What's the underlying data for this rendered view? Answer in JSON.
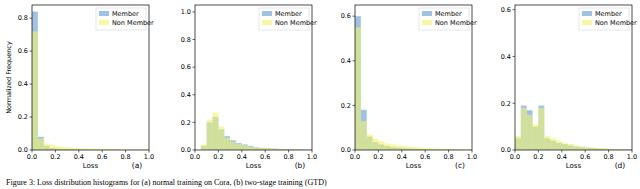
{
  "chart_data": [
    {
      "type": "histogram",
      "title": "(a)",
      "x_label": "Loss",
      "y_label": "Normalized Frequency",
      "bins": [
        0,
        0.05,
        0.1,
        0.15,
        0.2,
        0.25,
        0.3,
        0.35,
        0.4,
        0.45,
        0.5,
        0.55,
        0.6,
        0.65,
        0.7,
        0.75,
        0.8,
        0.85,
        0.9,
        0.95,
        1
      ],
      "series": [
        {
          "name": "Member",
          "color": "#8fb8e0",
          "values": [
            0.84,
            0.08,
            0.025,
            0.012,
            0.008,
            0.006,
            0.005,
            0.004,
            0.003,
            0.003,
            0.002,
            0.002,
            0.002,
            0.001,
            0.001,
            0.001,
            0.001,
            0.001,
            0.001,
            0.001
          ]
        },
        {
          "name": "Non Member",
          "color": "#f2f26a",
          "values": [
            0.72,
            0.07,
            0.04,
            0.03,
            0.022,
            0.018,
            0.015,
            0.012,
            0.01,
            0.009,
            0.008,
            0.007,
            0.006,
            0.005,
            0.005,
            0.004,
            0.004,
            0.003,
            0.003,
            0.003
          ]
        }
      ],
      "xlim": [
        0,
        1
      ],
      "xticks": [
        {
          "value": 0,
          "label": "0.0"
        },
        0.2,
        0.4,
        0.6,
        0.8,
        {
          "value": 1,
          "label": "1.0"
        }
      ],
      "ylim": [
        0,
        0.88
      ],
      "yticks": [
        {
          "value": 0,
          "label": "0.0"
        },
        0.2,
        0.4,
        0.6,
        0.8
      ],
      "legend": "upper right",
      "grid": false
    },
    {
      "type": "histogram",
      "title": "(b)",
      "x_label": "Loss",
      "bins": [
        0,
        0.05,
        0.1,
        0.15,
        0.2,
        0.25,
        0.3,
        0.35,
        0.4,
        0.45,
        0.5,
        0.55,
        0.6,
        0.65,
        0.7,
        0.75,
        0.8,
        0.85,
        0.9,
        0.95,
        1
      ],
      "series": [
        {
          "name": "Member",
          "color": "#8fb8e0",
          "values": [
            0,
            0.03,
            0.2,
            0.24,
            0.15,
            0.1,
            0.07,
            0.05,
            0.04,
            0.03,
            0.02,
            0.015,
            0.012,
            0.01,
            0.008,
            0.006,
            0.005,
            0.004,
            0.003,
            0.002
          ]
        },
        {
          "name": "Non Member",
          "color": "#f2f26a",
          "values": [
            0,
            0.04,
            0.22,
            0.27,
            0.17,
            0.09,
            0.06,
            0.045,
            0.035,
            0.025,
            0.02,
            0.015,
            0.012,
            0.01,
            0.008,
            0.006,
            0.005,
            0.004,
            0.003,
            0.002
          ]
        }
      ],
      "xlim": [
        0,
        1
      ],
      "xticks": [
        {
          "value": 0,
          "label": "0.0"
        },
        0.2,
        0.4,
        0.6,
        0.8,
        {
          "value": 1,
          "label": "1.0"
        }
      ],
      "ylim": [
        0,
        1.05
      ],
      "yticks": [
        {
          "value": 0,
          "label": "0.0"
        },
        0.2,
        0.4,
        0.6,
        0.8,
        {
          "value": 1,
          "label": "1.0"
        }
      ],
      "legend": "upper right",
      "grid": false
    },
    {
      "type": "histogram",
      "title": "(c)",
      "x_label": "Loss",
      "bins": [
        0,
        0.05,
        0.1,
        0.15,
        0.2,
        0.25,
        0.3,
        0.35,
        0.4,
        0.45,
        0.5,
        0.55,
        0.6,
        0.65,
        0.7,
        0.75,
        0.8,
        0.85,
        0.9,
        0.95,
        1
      ],
      "series": [
        {
          "name": "Member",
          "color": "#8fb8e0",
          "values": [
            0.6,
            0.18,
            0.06,
            0.035,
            0.025,
            0.018,
            0.013,
            0.01,
            0.008,
            0.006,
            0.005,
            0.004,
            0.003,
            0.003,
            0.002,
            0.002,
            0.002,
            0.001,
            0.001,
            0.001
          ]
        },
        {
          "name": "Non Member",
          "color": "#f2f26a",
          "values": [
            0.55,
            0.13,
            0.07,
            0.05,
            0.04,
            0.03,
            0.025,
            0.02,
            0.018,
            0.015,
            0.012,
            0.01,
            0.008,
            0.007,
            0.006,
            0.005,
            0.004,
            0.003,
            0.003,
            0.002
          ]
        }
      ],
      "xlim": [
        0,
        1
      ],
      "xticks": [
        {
          "value": 0,
          "label": "0.0"
        },
        0.2,
        0.4,
        0.6,
        0.8,
        {
          "value": 1,
          "label": "1.0"
        }
      ],
      "ylim": [
        0,
        0.65
      ],
      "yticks": [
        {
          "value": 0,
          "label": "0.0"
        },
        0.2,
        0.4,
        0.6
      ],
      "legend": "upper right",
      "grid": false
    },
    {
      "type": "histogram",
      "title": "(d)",
      "x_label": "Loss",
      "bins": [
        0,
        0.05,
        0.1,
        0.15,
        0.2,
        0.25,
        0.3,
        0.35,
        0.4,
        0.45,
        0.5,
        0.55,
        0.6,
        0.65,
        0.7,
        0.75,
        0.8,
        0.85,
        0.9,
        0.95,
        1
      ],
      "series": [
        {
          "name": "Member",
          "color": "#8fb8e0",
          "values": [
            0.05,
            0.19,
            0.17,
            0.1,
            0.19,
            0.05,
            0.04,
            0.03,
            0.025,
            0.02,
            0.015,
            0.012,
            0.01,
            0.008,
            0.006,
            0.005,
            0.004,
            0.003,
            0.002,
            0.002
          ]
        },
        {
          "name": "Non Member",
          "color": "#f2f26a",
          "values": [
            0.06,
            0.18,
            0.15,
            0.11,
            0.18,
            0.06,
            0.05,
            0.04,
            0.03,
            0.025,
            0.02,
            0.015,
            0.012,
            0.01,
            0.008,
            0.006,
            0.005,
            0.004,
            0.003,
            0.002
          ]
        }
      ],
      "xlim": [
        0,
        1
      ],
      "xticks": [
        {
          "value": 0,
          "label": "0.0"
        },
        0.2,
        0.4,
        0.6,
        0.8,
        {
          "value": 1,
          "label": "1.0"
        }
      ],
      "ylim": [
        0,
        0.62
      ],
      "yticks": [
        {
          "value": 0,
          "label": "0.0"
        },
        0.2,
        0.4,
        0.6
      ],
      "legend": "upper right",
      "grid": false
    }
  ],
  "caption": "Figure 3: Loss distribution histograms for (a) normal training on Cora, (b) two-stage training (GTD)"
}
